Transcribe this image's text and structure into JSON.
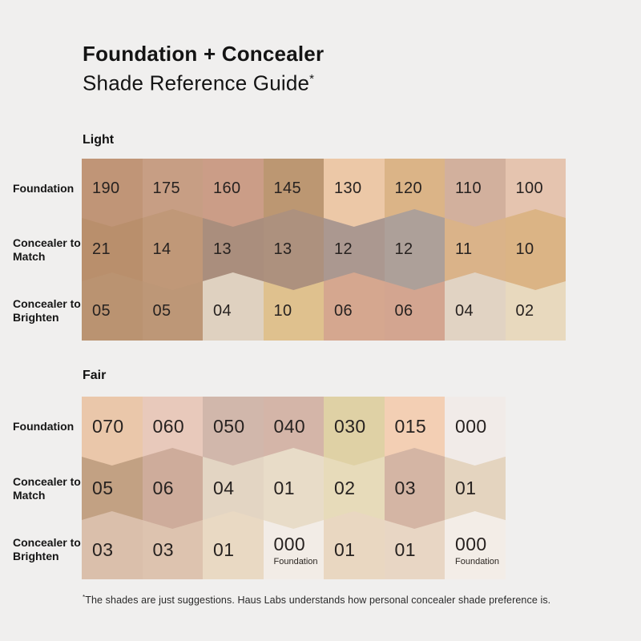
{
  "background_color": "#f0efee",
  "title": {
    "line1": "Foundation + Concealer",
    "line2": "Shade Reference Guide",
    "footnote_marker": "*"
  },
  "footnote": {
    "marker": "*",
    "text": "The shades are just suggestions. Haus Labs understands how personal concealer shade preference is."
  },
  "text_color": "#272220",
  "sections": [
    {
      "name": "Light",
      "rows": [
        {
          "label": "Foundation",
          "shades": [
            {
              "code": "190",
              "color": "#c09577"
            },
            {
              "code": "175",
              "color": "#c79e84"
            },
            {
              "code": "160",
              "color": "#cb9d87"
            },
            {
              "code": "145",
              "color": "#bc9772"
            },
            {
              "code": "130",
              "color": "#ecc8a7"
            },
            {
              "code": "120",
              "color": "#dbb487"
            },
            {
              "code": "110",
              "color": "#d2b09d"
            },
            {
              "code": "100",
              "color": "#e5c4af"
            }
          ]
        },
        {
          "label": "Concealer to Match",
          "shades": [
            {
              "code": "21",
              "color": "#b98f6c"
            },
            {
              "code": "14",
              "color": "#c09878"
            },
            {
              "code": "13",
              "color": "#aa8e7d"
            },
            {
              "code": "13",
              "color": "#ad917e"
            },
            {
              "code": "12",
              "color": "#ab9890"
            },
            {
              "code": "12",
              "color": "#ada099"
            },
            {
              "code": "11",
              "color": "#dab389"
            },
            {
              "code": "10",
              "color": "#dbb485"
            }
          ]
        },
        {
          "label": "Concealer to Brighten",
          "shades": [
            {
              "code": "05",
              "color": "#ba9371"
            },
            {
              "code": "05",
              "color": "#bd9777"
            },
            {
              "code": "04",
              "color": "#dfd1c0"
            },
            {
              "code": "10",
              "color": "#dfc18e"
            },
            {
              "code": "06",
              "color": "#d5a78f"
            },
            {
              "code": "06",
              "color": "#d3a590"
            },
            {
              "code": "04",
              "color": "#e1d3c3"
            },
            {
              "code": "02",
              "color": "#e8d9be"
            }
          ]
        }
      ]
    },
    {
      "name": "Fair",
      "rows": [
        {
          "label": "Foundation",
          "shades": [
            {
              "code": "070",
              "color": "#eac7aa"
            },
            {
              "code": "060",
              "color": "#e8c9bb"
            },
            {
              "code": "050",
              "color": "#d1b7ab"
            },
            {
              "code": "040",
              "color": "#d4b5a8"
            },
            {
              "code": "030",
              "color": "#dfd1a5"
            },
            {
              "code": "015",
              "color": "#f3cfb4"
            },
            {
              "code": "000",
              "color": "#f1ebe8"
            }
          ]
        },
        {
          "label": "Concealer to Match",
          "shades": [
            {
              "code": "05",
              "color": "#c2a183"
            },
            {
              "code": "06",
              "color": "#ceac9b"
            },
            {
              "code": "04",
              "color": "#e3d5c3"
            },
            {
              "code": "01",
              "color": "#e8dcc8"
            },
            {
              "code": "02",
              "color": "#e7dbba"
            },
            {
              "code": "03",
              "color": "#d4b5a4"
            },
            {
              "code": "01",
              "color": "#e4d4bf"
            }
          ]
        },
        {
          "label": "Concealer to Brighten",
          "shades": [
            {
              "code": "03",
              "color": "#dabfab"
            },
            {
              "code": "03",
              "color": "#ddc3af"
            },
            {
              "code": "01",
              "color": "#e9d9c3"
            },
            {
              "code": "000",
              "sub": "Foundation",
              "color": "#f2ece6"
            },
            {
              "code": "01",
              "color": "#e9d7c1"
            },
            {
              "code": "01",
              "color": "#e8d6c4"
            },
            {
              "code": "000",
              "sub": "Foundation",
              "color": "#f3ede7"
            }
          ]
        }
      ]
    }
  ]
}
